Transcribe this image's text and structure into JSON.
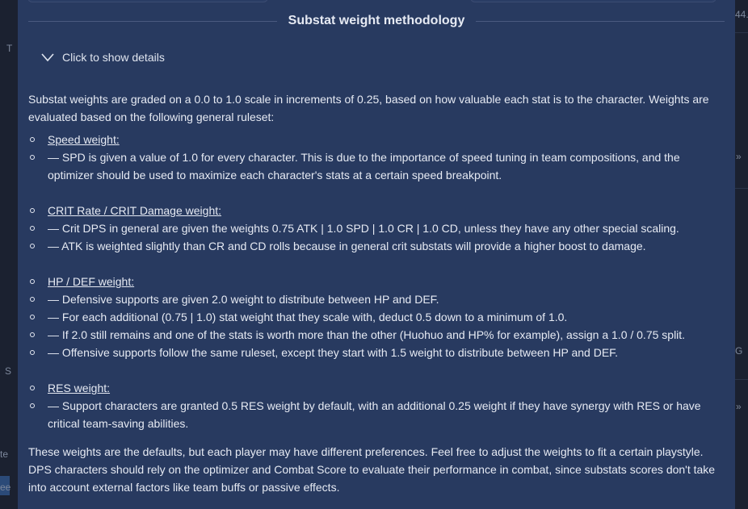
{
  "background": {
    "fragments": [
      "44.",
      "T",
      "»",
      "G",
      "S",
      "»",
      "te",
      "ee"
    ]
  },
  "section": {
    "title": "Substat weight methodology",
    "details_toggle_label": "Click to show details"
  },
  "content": {
    "intro": "Substat weights are graded on a 0.0 to 1.0 scale in increments of 0.25, based on how valuable each stat is to the character. Weights are evaluated based on the following general ruleset:",
    "groups": [
      {
        "heading": "Speed weight:",
        "items": [
          "— SPD is given a value of 1.0 for every character. This is due to the importance of speed tuning in team compositions, and the optimizer should be used to maximize each character's stats at a certain speed breakpoint."
        ]
      },
      {
        "heading": "CRIT Rate / CRIT Damage weight:",
        "items": [
          "— Crit DPS in general are given the weights 0.75 ATK | 1.0 SPD | 1.0 CR | 1.0 CD, unless they have any other special scaling.",
          "— ATK is weighted slightly than CR and CD rolls because in general crit substats will provide a higher boost to damage."
        ]
      },
      {
        "heading": "HP / DEF weight:",
        "items": [
          "— Defensive supports are given 2.0 weight to distribute between HP and DEF.",
          "— For each additional (0.75 | 1.0) stat weight that they scale with, deduct 0.5 down to a minimum of 1.0.",
          "— If 2.0 still remains and one of the stats is worth more than the other (Huohuo and HP% for example), assign a 1.0 / 0.75 split.",
          "— Offensive supports follow the same ruleset, except they start with 1.5 weight to distribute between HP and DEF."
        ]
      },
      {
        "heading": "RES weight:",
        "items": [
          "— Support characters are granted 0.5 RES weight by default, with an additional 0.25 weight if they have synergy with RES or have critical team-saving abilities."
        ]
      }
    ],
    "outro": "These weights are the defaults, but each player may have different preferences. Feel free to adjust the weights to fit a certain playstyle. DPS characters should rely on the optimizer and Combat Score to evaluate their performance in combat, since substats scores don't take into account external factors like team buffs or passive effects."
  }
}
